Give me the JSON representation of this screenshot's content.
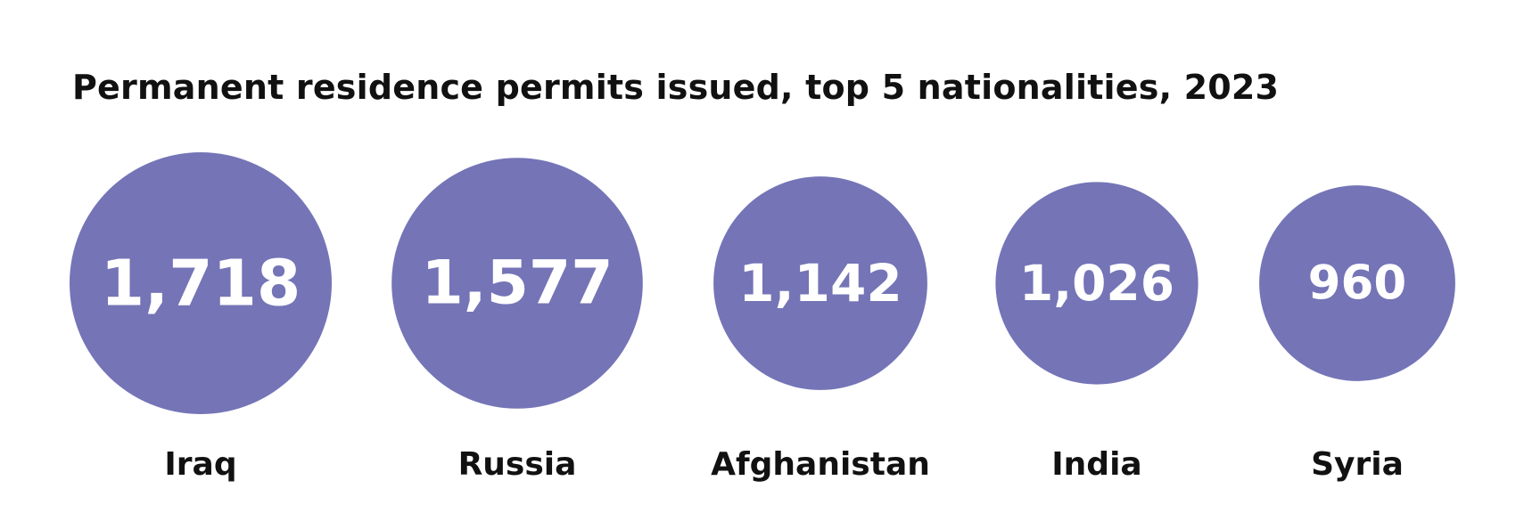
{
  "chart_data": {
    "type": "bubble",
    "title": "Permanent residence permits issued, top 5 nationalities, 2023",
    "categories": [
      "Iraq",
      "Russia",
      "Afghanistan",
      "India",
      "Syria"
    ],
    "values": [
      1718,
      1577,
      1142,
      1026,
      960
    ],
    "value_labels": [
      "1,718",
      "1,577",
      "1,142",
      "1,026",
      "960"
    ],
    "bubble_color": "#7474b7",
    "value_label_color": "#ffffff",
    "category_label_color": "#111111"
  }
}
